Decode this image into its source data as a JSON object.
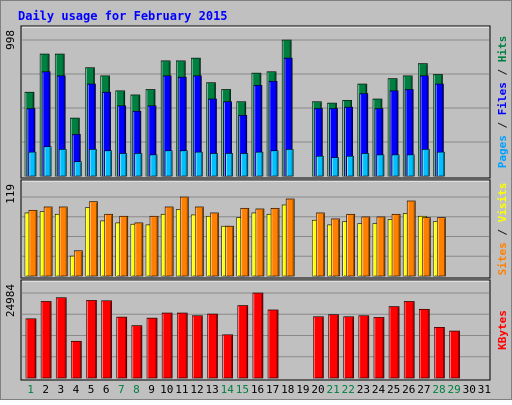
{
  "chart_data": {
    "type": "bar",
    "title": "Daily usage for February 2015",
    "days": [
      "1",
      "2",
      "3",
      "4",
      "5",
      "6",
      "7",
      "8",
      "9",
      "10",
      "11",
      "12",
      "13",
      "14",
      "15",
      "16",
      "17",
      "18",
      "19",
      "20",
      "21",
      "22",
      "23",
      "24",
      "25",
      "26",
      "27",
      "28",
      "29",
      "30",
      "31"
    ],
    "weekend_days": [
      "1",
      "7",
      "8",
      "14",
      "15",
      "21",
      "22",
      "28",
      "29"
    ],
    "panels": [
      {
        "id": "hits-files-pages",
        "max_label": "998",
        "ylim": [
          0,
          998
        ],
        "axis_label": [
          {
            "text": "Pages",
            "color": "#00a0ff"
          },
          {
            "text": " / ",
            "color": "#202020"
          },
          {
            "text": "Files",
            "color": "#0000ff"
          },
          {
            "text": " / ",
            "color": "#202020"
          },
          {
            "text": "Hits",
            "color": "#008040"
          }
        ],
        "series": [
          {
            "name": "Hits",
            "color": "#008040",
            "values": [
              615,
              895,
              895,
              425,
              795,
              735,
              625,
              595,
              635,
              845,
              845,
              865,
              685,
              635,
              545,
              755,
              765,
              998,
              null,
              545,
              535,
              555,
              675,
              565,
              715,
              735,
              825,
              745,
              0,
              null,
              null
            ]
          },
          {
            "name": "Files",
            "color": "#0000ff",
            "values": [
              495,
              765,
              735,
              305,
              675,
              615,
              515,
              475,
              515,
              735,
              725,
              735,
              565,
              545,
              445,
              665,
              695,
              865,
              null,
              495,
              495,
              505,
              605,
              495,
              625,
              635,
              735,
              675,
              0,
              null,
              null
            ]
          },
          {
            "name": "Pages",
            "color": "#00c0ff",
            "values": [
              175,
              215,
              195,
              105,
              195,
              185,
              165,
              165,
              155,
              185,
              185,
              175,
              165,
              165,
              165,
              175,
              185,
              195,
              null,
              145,
              135,
              145,
              165,
              155,
              155,
              155,
              195,
              175,
              0,
              null,
              null
            ]
          }
        ]
      },
      {
        "id": "sites-visits",
        "max_label": "119",
        "ylim": [
          0,
          119
        ],
        "axis_label": [
          {
            "text": "Sites",
            "color": "#ff8000"
          },
          {
            "text": " / ",
            "color": "#202020"
          },
          {
            "text": "Visits",
            "color": "#ffff00"
          }
        ],
        "series": [
          {
            "name": "Visits",
            "color": "#ffff00",
            "values": [
              95,
              97,
              93,
              30,
              103,
              83,
              80,
              78,
              77,
              93,
              100,
              92,
              90,
              75,
              88,
              95,
              93,
              107,
              null,
              84,
              77,
              82,
              79,
              79,
              85,
              94,
              90,
              82,
              0,
              null,
              null
            ]
          },
          {
            "name": "Sites",
            "color": "#ff8000",
            "values": [
              99,
              104,
              104,
              38,
              112,
              93,
              90,
              80,
              90,
              104,
              119,
              104,
              95,
              75,
              102,
              101,
              102,
              116,
              null,
              95,
              86,
              93,
              89,
              89,
              93,
              113,
              88,
              88,
              0,
              null,
              null
            ]
          }
        ]
      },
      {
        "id": "kbytes",
        "max_label": "24984",
        "ylim": [
          0,
          24984
        ],
        "axis_label": [
          {
            "text": "KBytes",
            "color": "#ff0000"
          }
        ],
        "series": [
          {
            "name": "KBytes",
            "color": "#ff0000",
            "values": [
              17400,
              22500,
              23600,
              10800,
              22800,
              22700,
              17900,
              15400,
              17600,
              19100,
              19100,
              18300,
              18800,
              12700,
              21300,
              24984,
              20000,
              null,
              null,
              18000,
              18600,
              18000,
              18300,
              17800,
              21000,
              22500,
              20200,
              14900,
              13800,
              null,
              null
            ]
          }
        ]
      }
    ]
  }
}
